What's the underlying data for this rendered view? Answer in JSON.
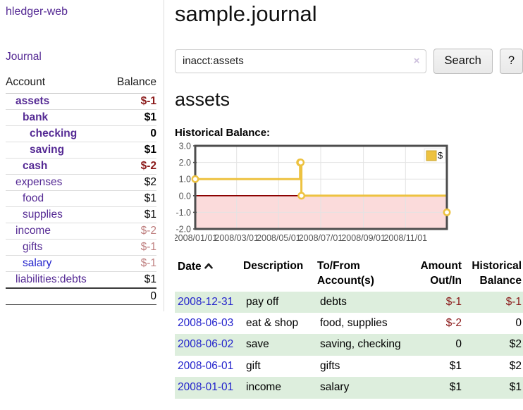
{
  "app": {
    "title": "hledger-web",
    "nav_journal": "Journal"
  },
  "colors": {
    "link_purple": "#552a94",
    "link_blue": "#2222cc",
    "negative_dark_red": "#8b1a1a",
    "negative_rose": "#bf8080",
    "series_gold": "#edc240",
    "negative_region_pink": "#fbdbdb",
    "zero_line_dark_red": "#8b0000",
    "row_green": "#ddeedd",
    "grid_gray": "#e3e3e3",
    "chart_border": "#4d4d4d",
    "axis_text": "#545454"
  },
  "sidebar": {
    "headers": {
      "account": "Account",
      "balance": "Balance"
    },
    "accounts": [
      {
        "name": "assets",
        "balance": "$-1",
        "level": 1,
        "bold": true,
        "balance_color": "darkred"
      },
      {
        "name": "bank",
        "balance": "$1",
        "level": 2,
        "bold": true,
        "balance_color": "black"
      },
      {
        "name": "checking",
        "balance": "0",
        "level": 3,
        "bold": true,
        "balance_color": "black"
      },
      {
        "name": "saving",
        "balance": "$1",
        "level": 3,
        "bold": true,
        "balance_color": "black"
      },
      {
        "name": "cash",
        "balance": "$-2",
        "level": 2,
        "bold": true,
        "balance_color": "darkred"
      },
      {
        "name": "expenses",
        "balance": "$2",
        "level": 1,
        "bold": false,
        "balance_color": "black"
      },
      {
        "name": "food",
        "balance": "$1",
        "level": 2,
        "bold": false,
        "balance_color": "black"
      },
      {
        "name": "supplies",
        "balance": "$1",
        "level": 2,
        "bold": false,
        "balance_color": "black"
      },
      {
        "name": "income",
        "balance": "$-2",
        "level": 1,
        "bold": false,
        "balance_color": "rose"
      },
      {
        "name": "gifts",
        "balance": "$-1",
        "level": 2,
        "bold": false,
        "balance_color": "rose"
      },
      {
        "name": "salary",
        "balance": "$-1",
        "level": 2,
        "bold": false,
        "balance_color": "rose",
        "link_color": "blue"
      },
      {
        "name": "liabilities:debts",
        "balance": "$1",
        "level": 1,
        "bold": false,
        "balance_color": "black"
      }
    ],
    "total": "0"
  },
  "header": {
    "title": "sample.journal"
  },
  "search": {
    "value": "inacct:assets",
    "clear_icon": "×",
    "button_label": "Search",
    "help_label": "?"
  },
  "account_page": {
    "heading": "assets",
    "chart_label": "Historical Balance:"
  },
  "chart_data": {
    "type": "line",
    "step": true,
    "title": "Historical Balance",
    "series": [
      {
        "name": "$",
        "color": "#edc240",
        "points": [
          [
            "2008-01-01",
            1
          ],
          [
            "2008-06-01",
            2
          ],
          [
            "2008-06-02",
            2
          ],
          [
            "2008-06-03",
            0
          ],
          [
            "2008-12-31",
            -1
          ]
        ]
      }
    ],
    "x_range": [
      "2008-01-01",
      "2008-12-31"
    ],
    "ylim": [
      -2,
      3
    ],
    "yticks": [
      3.0,
      2.0,
      1.0,
      0.0,
      -1.0,
      -2.0
    ],
    "xtick_labels": [
      "2008/01/01",
      "2008/03/01",
      "2008/05/01",
      "2008/07/01",
      "2008/09/01",
      "2008/11/01"
    ],
    "legend_position": "top-right",
    "grid": true
  },
  "register": {
    "headers": {
      "date": "Date",
      "description": "Description",
      "accounts": "To/From Account(s)",
      "amount": "Amount Out/In",
      "balance": "Historical Balance"
    },
    "sort": {
      "column": "date",
      "direction": "ascending"
    },
    "rows": [
      {
        "date": "2008-12-31",
        "description": "pay off",
        "accounts": "debts",
        "amount": "$-1",
        "amount_negative": true,
        "balance": "$-1",
        "balance_negative": true
      },
      {
        "date": "2008-06-03",
        "description": "eat & shop",
        "accounts": "food, supplies",
        "amount": "$-2",
        "amount_negative": true,
        "balance": "0",
        "balance_negative": false
      },
      {
        "date": "2008-06-02",
        "description": "save",
        "accounts": "saving, checking",
        "amount": "0",
        "amount_negative": false,
        "balance": "$2",
        "balance_negative": false
      },
      {
        "date": "2008-06-01",
        "description": "gift",
        "accounts": "gifts",
        "amount": "$1",
        "amount_negative": false,
        "balance": "$2",
        "balance_negative": false
      },
      {
        "date": "2008-01-01",
        "description": "income",
        "accounts": "salary",
        "amount": "$1",
        "amount_negative": false,
        "balance": "$1",
        "balance_negative": false
      }
    ]
  }
}
